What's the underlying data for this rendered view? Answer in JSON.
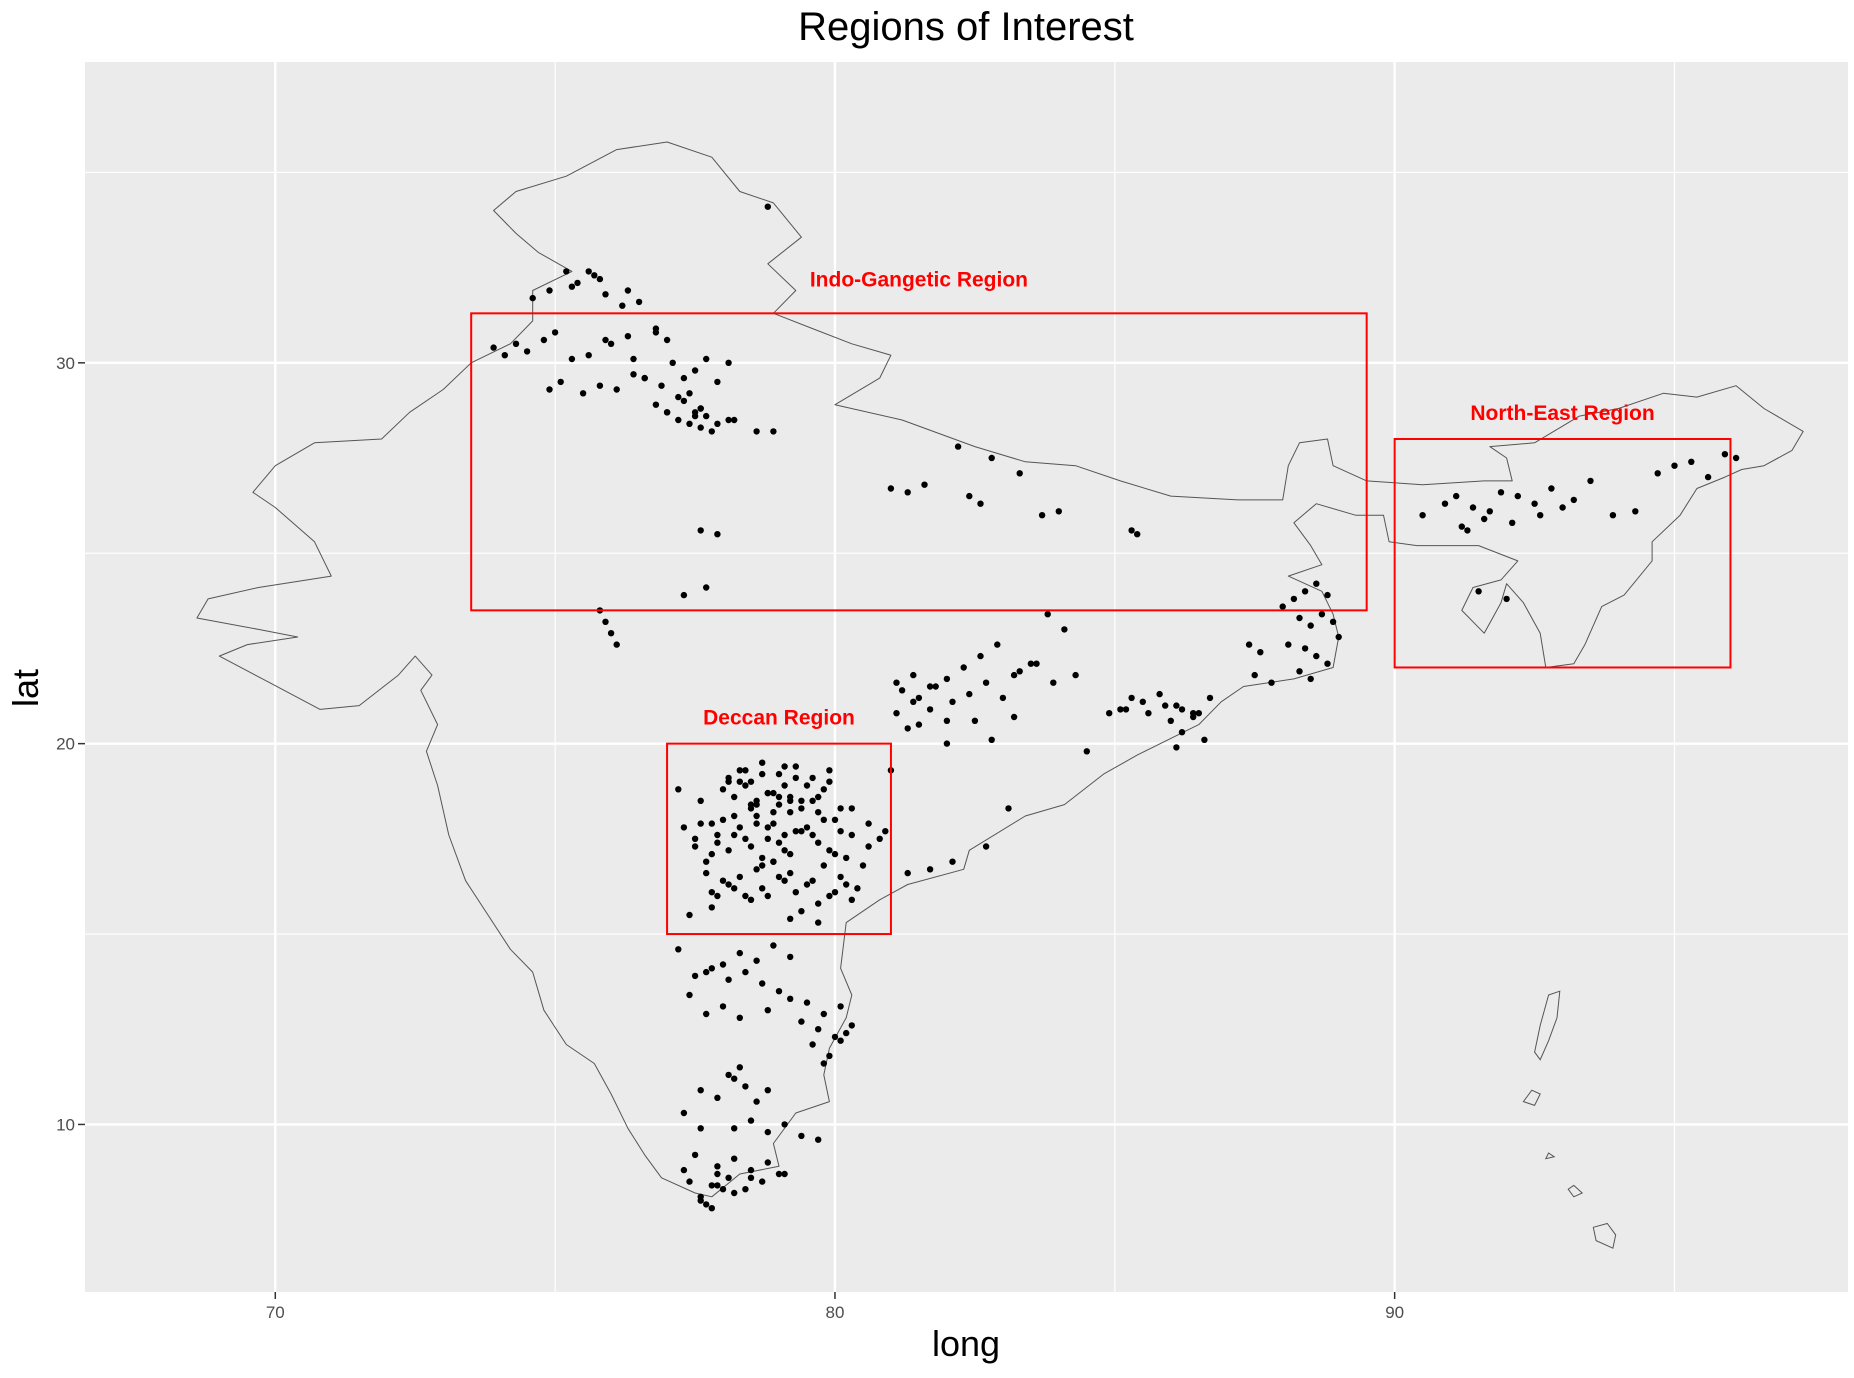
{
  "title": "Regions of Interest",
  "xlabel": "long",
  "ylabel": "lat",
  "chart_data": {
    "type": "scatter",
    "title": "Regions of Interest",
    "xlabel": "long",
    "ylabel": "lat",
    "xlim": [
      66.6,
      98.1
    ],
    "ylim": [
      5.6,
      37.9
    ],
    "x_ticks": [
      70,
      80,
      90
    ],
    "y_ticks": [
      10,
      20,
      30
    ],
    "x_tick_labels": [
      "70",
      "80",
      "90"
    ],
    "y_tick_labels": [
      "10",
      "20",
      "30"
    ],
    "grid": true,
    "background": "#ebebeb",
    "grid_color": "#ffffff",
    "point_color": "#000000",
    "outline_color": "#555555",
    "region_color": "#ff0000",
    "regions": [
      {
        "label": "Indo-Gangetic Region",
        "long": [
          73.5,
          89.5
        ],
        "lat": [
          23.5,
          31.3
        ]
      },
      {
        "label": "North-East Region",
        "long": [
          90.0,
          96.0
        ],
        "lat": [
          22.0,
          28.0
        ]
      },
      {
        "label": "Deccan Region",
        "long": [
          77.0,
          81.0
        ],
        "lat": [
          15.0,
          20.0
        ]
      }
    ],
    "outline": [
      [
        74.3,
        34.5
      ],
      [
        75.2,
        34.9
      ],
      [
        76.1,
        35.6
      ],
      [
        77.0,
        35.8
      ],
      [
        77.8,
        35.4
      ],
      [
        78.3,
        34.5
      ],
      [
        78.9,
        34.2
      ],
      [
        79.4,
        33.3
      ],
      [
        78.8,
        32.6
      ],
      [
        79.3,
        31.9
      ],
      [
        78.9,
        31.3
      ],
      [
        79.6,
        30.9
      ],
      [
        80.3,
        30.5
      ],
      [
        81.0,
        30.2
      ],
      [
        80.8,
        29.6
      ],
      [
        80.0,
        28.9
      ],
      [
        81.2,
        28.5
      ],
      [
        82.5,
        27.8
      ],
      [
        83.4,
        27.4
      ],
      [
        84.3,
        27.3
      ],
      [
        85.1,
        26.9
      ],
      [
        86.0,
        26.5
      ],
      [
        87.2,
        26.4
      ],
      [
        88.0,
        26.4
      ],
      [
        88.1,
        27.3
      ],
      [
        88.3,
        27.9
      ],
      [
        88.8,
        28.0
      ],
      [
        88.9,
        27.3
      ],
      [
        89.5,
        26.9
      ],
      [
        90.5,
        26.8
      ],
      [
        91.6,
        26.9
      ],
      [
        92.1,
        26.9
      ],
      [
        92.0,
        27.5
      ],
      [
        91.7,
        27.8
      ],
      [
        92.5,
        27.9
      ],
      [
        93.3,
        28.6
      ],
      [
        94.0,
        28.8
      ],
      [
        94.8,
        29.2
      ],
      [
        95.4,
        29.1
      ],
      [
        96.1,
        29.4
      ],
      [
        96.6,
        28.8
      ],
      [
        97.3,
        28.2
      ],
      [
        97.1,
        27.7
      ],
      [
        96.6,
        27.3
      ],
      [
        96.2,
        27.2
      ],
      [
        95.9,
        27.0
      ],
      [
        95.4,
        26.7
      ],
      [
        95.1,
        26.0
      ],
      [
        94.6,
        25.3
      ],
      [
        94.6,
        24.8
      ],
      [
        94.1,
        23.9
      ],
      [
        93.7,
        23.6
      ],
      [
        93.4,
        22.6
      ],
      [
        93.2,
        22.1
      ],
      [
        92.7,
        22.0
      ],
      [
        92.6,
        22.9
      ],
      [
        92.3,
        23.7
      ],
      [
        92.0,
        24.2
      ],
      [
        91.9,
        23.7
      ],
      [
        91.6,
        22.9
      ],
      [
        91.2,
        23.5
      ],
      [
        91.4,
        24.1
      ],
      [
        91.9,
        24.3
      ],
      [
        92.2,
        24.8
      ],
      [
        91.5,
        25.2
      ],
      [
        90.4,
        25.2
      ],
      [
        89.9,
        25.3
      ],
      [
        89.8,
        26.0
      ],
      [
        89.3,
        26.0
      ],
      [
        88.6,
        26.3
      ],
      [
        88.2,
        25.8
      ],
      [
        88.5,
        25.2
      ],
      [
        88.7,
        24.7
      ],
      [
        88.1,
        24.4
      ],
      [
        88.7,
        24.0
      ],
      [
        88.9,
        23.4
      ],
      [
        89.0,
        22.8
      ],
      [
        88.9,
        22.0
      ],
      [
        88.2,
        21.7
      ],
      [
        87.3,
        21.5
      ],
      [
        86.9,
        21.1
      ],
      [
        86.5,
        20.5
      ],
      [
        85.4,
        19.7
      ],
      [
        84.8,
        19.2
      ],
      [
        84.1,
        18.4
      ],
      [
        83.4,
        18.1
      ],
      [
        82.4,
        17.2
      ],
      [
        82.3,
        16.7
      ],
      [
        81.3,
        16.3
      ],
      [
        80.8,
        15.9
      ],
      [
        80.2,
        15.3
      ],
      [
        80.1,
        14.1
      ],
      [
        80.3,
        13.4
      ],
      [
        80.2,
        12.8
      ],
      [
        79.9,
        12.0
      ],
      [
        79.8,
        11.3
      ],
      [
        79.9,
        10.6
      ],
      [
        79.3,
        10.3
      ],
      [
        78.9,
        9.5
      ],
      [
        79.0,
        8.9
      ],
      [
        78.3,
        8.7
      ],
      [
        77.8,
        8.1
      ],
      [
        77.5,
        8.2
      ],
      [
        76.9,
        8.6
      ],
      [
        76.6,
        9.2
      ],
      [
        76.3,
        9.9
      ],
      [
        76.0,
        10.8
      ],
      [
        75.7,
        11.6
      ],
      [
        75.2,
        12.1
      ],
      [
        74.8,
        13.0
      ],
      [
        74.6,
        14.0
      ],
      [
        74.2,
        14.6
      ],
      [
        73.8,
        15.5
      ],
      [
        73.4,
        16.4
      ],
      [
        73.1,
        17.6
      ],
      [
        72.9,
        18.9
      ],
      [
        72.7,
        19.8
      ],
      [
        72.9,
        20.5
      ],
      [
        72.6,
        21.4
      ],
      [
        72.8,
        21.8
      ],
      [
        72.5,
        22.3
      ],
      [
        72.2,
        21.8
      ],
      [
        71.5,
        21.0
      ],
      [
        70.8,
        20.9
      ],
      [
        69.9,
        21.6
      ],
      [
        69.0,
        22.3
      ],
      [
        69.5,
        22.6
      ],
      [
        70.4,
        22.8
      ],
      [
        69.7,
        23.0
      ],
      [
        68.6,
        23.3
      ],
      [
        68.8,
        23.8
      ],
      [
        69.7,
        24.1
      ],
      [
        71.0,
        24.4
      ],
      [
        70.7,
        25.3
      ],
      [
        70.0,
        26.2
      ],
      [
        69.6,
        26.6
      ],
      [
        70.0,
        27.3
      ],
      [
        70.7,
        27.9
      ],
      [
        71.9,
        28.0
      ],
      [
        72.4,
        28.7
      ],
      [
        73.0,
        29.3
      ],
      [
        73.5,
        30.0
      ],
      [
        74.2,
        30.5
      ],
      [
        74.6,
        31.1
      ],
      [
        74.6,
        31.9
      ],
      [
        75.3,
        32.4
      ],
      [
        74.7,
        32.9
      ],
      [
        74.3,
        33.4
      ],
      [
        73.9,
        34.0
      ],
      [
        74.3,
        34.5
      ]
    ],
    "islands": [
      [
        [
          92.75,
          13.4
        ],
        [
          92.95,
          13.5
        ],
        [
          92.9,
          12.8
        ],
        [
          92.75,
          12.2
        ],
        [
          92.6,
          11.7
        ],
        [
          92.5,
          11.9
        ],
        [
          92.6,
          12.6
        ],
        [
          92.75,
          13.4
        ]
      ],
      [
        [
          92.45,
          10.9
        ],
        [
          92.6,
          10.8
        ],
        [
          92.5,
          10.5
        ],
        [
          92.3,
          10.6
        ],
        [
          92.45,
          10.9
        ]
      ],
      [
        [
          93.8,
          7.4
        ],
        [
          93.95,
          7.1
        ],
        [
          93.9,
          6.75
        ],
        [
          93.6,
          6.95
        ],
        [
          93.55,
          7.3
        ],
        [
          93.8,
          7.4
        ]
      ],
      [
        [
          93.2,
          8.4
        ],
        [
          93.35,
          8.2
        ],
        [
          93.2,
          8.1
        ],
        [
          93.1,
          8.3
        ],
        [
          93.2,
          8.4
        ]
      ],
      [
        [
          92.75,
          9.25
        ],
        [
          92.85,
          9.15
        ],
        [
          92.7,
          9.1
        ],
        [
          92.75,
          9.25
        ]
      ]
    ],
    "labels_pos": [
      {
        "long": 81.5,
        "lat": 32.0
      },
      {
        "long": 93.0,
        "lat": 28.5
      },
      {
        "long": 79.0,
        "lat": 20.5
      }
    ],
    "points_long": [
      78.8,
      73.9,
      74.1,
      74.3,
      74.5,
      74.8,
      75.0,
      75.3,
      75.6,
      76.0,
      76.3,
      76.8,
      77.1,
      77.3,
      77.5,
      77.7,
      77.9,
      78.1,
      76.6,
      76.9,
      77.2,
      77.4,
      77.6,
      74.9,
      75.1,
      75.5,
      75.8,
      76.1,
      76.4,
      77.0,
      77.6,
      78.2,
      78.6,
      74.6,
      74.9,
      75.3,
      75.9,
      76.2,
      75.6,
      75.7,
      75.2,
      75.4,
      75.8,
      76.3,
      76.5,
      76.8,
      77.0,
      77.3,
      77.5,
      77.7,
      77.9,
      78.1,
      77.4,
      77.2,
      77.0,
      76.8,
      77.5,
      77.6,
      77.8,
      76.6,
      76.4,
      75.9,
      78.9,
      77.6,
      77.9,
      77.3,
      77.7,
      75.8,
      75.9,
      76.0,
      76.1,
      81.0,
      81.3,
      81.6,
      82.2,
      82.8,
      83.3,
      83.7,
      84.0,
      85.3,
      85.4,
      82.4,
      82.6,
      88.0,
      88.2,
      88.4,
      88.6,
      88.8,
      88.3,
      88.5,
      88.7,
      88.9,
      89.0,
      88.1,
      88.4,
      88.6,
      88.8,
      87.4,
      87.6,
      87.5,
      87.8,
      88.3,
      88.5,
      81.1,
      81.4,
      81.7,
      82.0,
      82.3,
      82.6,
      82.9,
      83.2,
      83.5,
      83.8,
      84.1,
      81.2,
      81.5,
      81.8,
      82.1,
      82.4,
      82.7,
      83.0,
      83.3,
      83.6,
      83.9,
      84.3,
      81.1,
      81.4,
      81.7,
      82.0,
      84.9,
      85.2,
      85.5,
      85.8,
      86.1,
      86.4,
      86.7,
      85.1,
      85.3,
      85.6,
      85.9,
      86.2,
      86.5,
      86.0,
      86.2,
      86.4,
      81.3,
      81.5,
      82.0,
      82.5,
      82.8,
      83.2,
      84.5,
      86.1,
      86.6,
      83.1,
      82.7,
      82.1,
      81.7,
      81.3,
      81.0,
      90.5,
      90.9,
      91.1,
      91.4,
      91.7,
      91.9,
      92.2,
      92.5,
      92.8,
      93.2,
      93.5,
      93.9,
      94.3,
      94.7,
      95.0,
      95.3,
      95.6,
      95.9,
      96.1,
      91.6,
      92.1,
      92.6,
      93.0,
      91.5,
      92.0,
      91.2,
      91.3,
      77.3,
      77.6,
      77.9,
      78.2,
      78.5,
      78.8,
      79.1,
      79.4,
      79.7,
      80.0,
      80.3,
      80.6,
      80.9,
      77.5,
      77.8,
      78.1,
      78.4,
      78.7,
      79.0,
      79.3,
      79.6,
      79.9,
      80.2,
      80.5,
      80.8,
      77.7,
      78.0,
      78.3,
      78.6,
      78.9,
      79.2,
      79.5,
      79.8,
      80.1,
      80.4,
      77.9,
      78.2,
      78.5,
      78.8,
      79.1,
      79.4,
      79.7,
      80.0,
      80.3,
      77.8,
      78.0,
      78.2,
      78.4,
      78.6,
      78.8,
      79.0,
      79.2,
      79.4,
      79.6,
      79.8,
      78.1,
      78.3,
      78.5,
      78.7,
      78.9,
      79.1,
      79.3,
      79.5,
      79.7,
      79.9,
      80.1,
      77.6,
      77.9,
      78.2,
      78.5,
      78.8,
      79.1,
      79.4,
      79.7,
      80.0,
      80.3,
      80.6,
      77.5,
      77.8,
      78.1,
      78.4,
      78.7,
      79.0,
      79.3,
      79.6,
      79.9,
      80.2,
      77.7,
      78.0,
      78.3,
      78.6,
      78.9,
      79.2,
      79.5,
      79.8,
      80.1,
      77.8,
      78.1,
      78.4,
      78.7,
      79.0,
      79.3,
      79.6,
      79.9,
      78.3,
      78.6,
      78.9,
      79.2,
      78.5,
      78.8,
      79.1,
      78.6,
      78.9,
      79.2,
      78.7,
      79.0,
      77.2,
      79.7,
      79.2,
      77.4,
      77.7,
      78.0,
      78.3,
      78.6,
      78.9,
      79.2,
      77.2,
      77.5,
      77.8,
      78.1,
      78.4,
      78.7,
      79.0,
      77.4,
      77.7,
      78.0,
      78.3,
      78.8,
      79.2,
      79.5,
      79.8,
      80.1,
      79.4,
      79.7,
      80.0,
      80.3,
      80.2,
      80.1,
      79.9,
      79.6,
      79.8,
      78.2,
      78.4,
      78.6,
      78.8,
      78.1,
      78.3,
      77.6,
      77.9,
      78.2,
      78.5,
      78.8,
      79.1,
      79.4,
      79.7,
      77.3,
      77.6,
      77.9,
      78.2,
      78.5,
      78.8,
      79.1,
      77.5,
      77.8,
      78.1,
      78.4,
      78.7,
      79.0,
      77.3,
      77.6,
      77.9,
      78.2,
      78.5,
      77.4,
      77.7,
      78.0,
      77.6,
      77.9,
      77.8
    ],
    "points_lat": [
      34.1,
      30.4,
      30.2,
      30.5,
      30.3,
      30.6,
      30.8,
      30.1,
      30.2,
      30.5,
      30.7,
      30.9,
      30.0,
      29.6,
      29.8,
      30.1,
      29.5,
      30.0,
      29.6,
      29.4,
      29.1,
      29.2,
      28.8,
      29.3,
      29.5,
      29.2,
      29.4,
      29.3,
      29.7,
      28.7,
      28.8,
      28.5,
      28.2,
      31.7,
      31.9,
      32.0,
      31.8,
      31.5,
      32.4,
      32.3,
      32.4,
      32.1,
      32.2,
      31.9,
      31.6,
      30.8,
      30.6,
      29.0,
      28.7,
      28.6,
      28.4,
      28.5,
      28.4,
      28.5,
      28.7,
      28.9,
      28.6,
      28.3,
      28.2,
      29.6,
      30.1,
      30.6,
      28.2,
      25.6,
      25.5,
      23.9,
      24.1,
      23.5,
      23.2,
      22.9,
      22.6,
      26.7,
      26.6,
      26.8,
      27.8,
      27.5,
      27.1,
      26.0,
      26.1,
      25.6,
      25.5,
      26.5,
      26.3,
      23.6,
      23.8,
      24.0,
      24.2,
      23.9,
      23.3,
      23.1,
      23.4,
      23.2,
      22.8,
      22.6,
      22.5,
      22.3,
      22.1,
      22.6,
      22.4,
      21.8,
      21.6,
      21.9,
      21.7,
      21.6,
      21.8,
      21.5,
      21.7,
      22.0,
      22.3,
      22.6,
      21.8,
      22.1,
      23.4,
      23.0,
      21.4,
      21.2,
      21.5,
      21.1,
      21.3,
      21.6,
      21.2,
      21.9,
      22.1,
      21.6,
      21.8,
      20.8,
      21.1,
      20.9,
      20.6,
      20.8,
      20.9,
      21.1,
      21.3,
      21.0,
      20.8,
      21.2,
      20.9,
      21.2,
      20.8,
      21.0,
      20.9,
      20.8,
      20.6,
      20.3,
      20.7,
      20.4,
      20.5,
      20.0,
      20.6,
      20.1,
      20.7,
      19.8,
      19.9,
      20.1,
      18.3,
      17.3,
      16.9,
      16.7,
      16.6,
      19.3,
      26.0,
      26.3,
      26.5,
      26.2,
      26.1,
      26.6,
      26.5,
      26.3,
      26.7,
      26.4,
      26.9,
      26.0,
      26.1,
      27.1,
      27.3,
      27.4,
      27.0,
      27.6,
      27.5,
      25.9,
      25.8,
      26.0,
      26.2,
      24.0,
      23.8,
      25.7,
      25.6,
      17.8,
      17.9,
      17.6,
      18.1,
      18.4,
      18.7,
      18.9,
      18.5,
      18.2,
      18.0,
      18.3,
      17.9,
      17.7,
      17.3,
      17.1,
      17.2,
      17.5,
      17.0,
      17.4,
      17.7,
      17.6,
      17.2,
      17.0,
      16.8,
      17.5,
      16.9,
      16.4,
      16.5,
      16.7,
      16.9,
      16.6,
      16.3,
      16.8,
      16.5,
      16.2,
      16.0,
      16.2,
      15.9,
      16.0,
      16.4,
      15.6,
      15.8,
      16.1,
      15.9,
      15.7,
      18.8,
      18.6,
      18.9,
      18.5,
      18.7,
      18.4,
      18.6,
      18.3,
      18.5,
      18.8,
      19.1,
      19.3,
      19.0,
      19.2,
      18.7,
      19.4,
      19.1,
      18.9,
      18.6,
      19.0,
      18.3,
      18.5,
      17.4,
      17.6,
      17.3,
      17.5,
      17.2,
      17.7,
      17.4,
      17.1,
      17.6,
      17.3,
      17.5,
      16.1,
      16.3,
      16.0,
      16.2,
      16.5,
      16.1,
      16.4,
      16.0,
      16.3,
      16.6,
      18.0,
      17.8,
      18.1,
      17.9,
      18.2,
      17.8,
      18.0,
      17.7,
      17.9,
      19.0,
      19.3,
      19.5,
      19.2,
      19.4,
      19.1,
      19.3,
      19.0,
      18.4,
      18.2,
      18.5,
      18.3,
      17.8,
      17.6,
      17.9,
      16.9,
      17.1,
      16.8,
      18.6,
      18.8,
      15.3,
      15.4,
      15.5,
      14.0,
      14.2,
      14.5,
      14.3,
      14.7,
      14.4,
      14.6,
      13.9,
      14.1,
      13.8,
      14.0,
      13.7,
      13.5,
      13.4,
      12.9,
      13.1,
      12.8,
      13.0,
      13.3,
      13.2,
      12.9,
      13.1,
      12.7,
      12.5,
      12.3,
      12.6,
      12.4,
      12.2,
      11.8,
      12.1,
      11.6,
      11.2,
      11.0,
      10.6,
      10.9,
      11.3,
      11.5,
      10.9,
      10.7,
      9.9,
      10.1,
      9.8,
      10.0,
      9.7,
      9.6,
      10.3,
      9.9,
      8.9,
      9.1,
      8.8,
      9.0,
      8.7,
      9.2,
      8.4,
      8.6,
      8.3,
      8.5,
      8.7,
      8.8,
      8.1,
      8.4,
      8.2,
      8.6,
      8.5,
      7.9,
      8.3,
      8.0,
      8.7,
      7.8,
      8.2
    ]
  }
}
